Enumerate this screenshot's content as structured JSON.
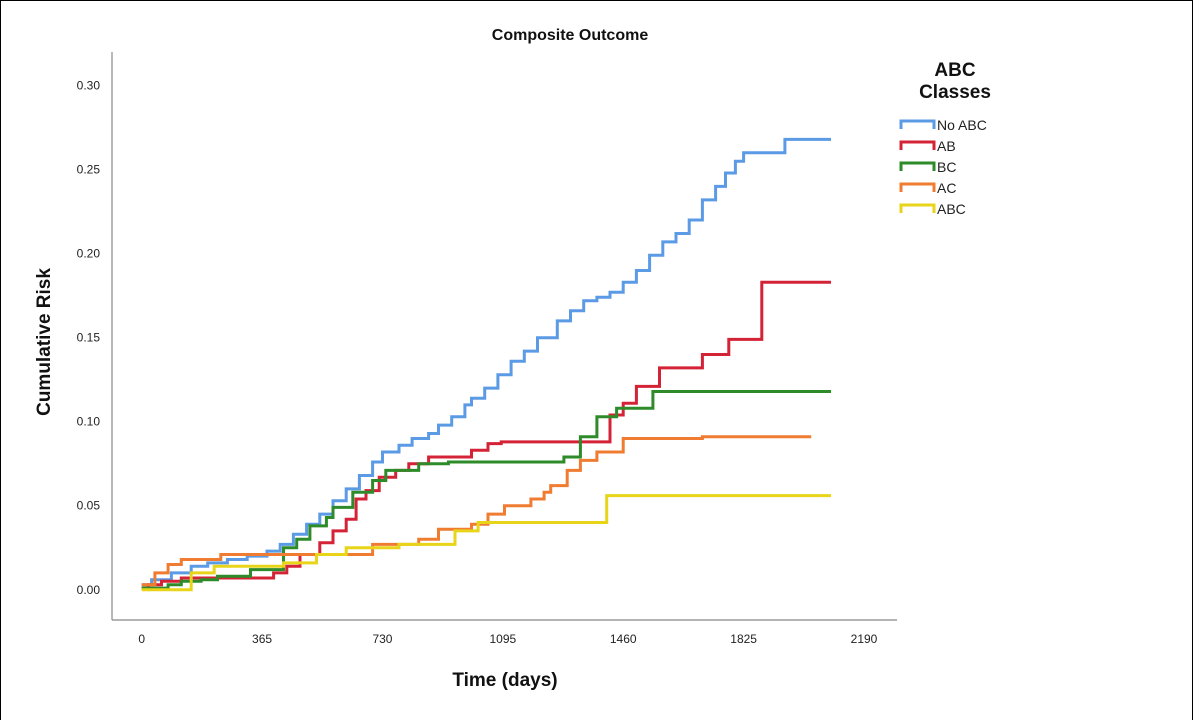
{
  "chart_data": {
    "type": "line",
    "title": "Composite Outcome",
    "xlabel": "Time (days)",
    "ylabel": "Cumulative Risk",
    "xlim": [
      -90,
      2290
    ],
    "ylim": [
      -0.018,
      0.32
    ],
    "x_ticks": [
      0,
      365,
      730,
      1095,
      1460,
      1825,
      2190
    ],
    "y_ticks": [
      0.0,
      0.05,
      0.1,
      0.15,
      0.2,
      0.25,
      0.3
    ],
    "y_tick_labels": [
      "0.00",
      "0.05",
      "0.10",
      "0.15",
      "0.20",
      "0.25",
      "0.30"
    ],
    "grid": false,
    "step": true,
    "legend": {
      "title": "ABC\nClasses",
      "position": "right"
    },
    "series": [
      {
        "name": "No ABC",
        "color": "#5b9ae5",
        "x": [
          0,
          30,
          90,
          150,
          200,
          260,
          320,
          380,
          420,
          460,
          500,
          540,
          580,
          620,
          660,
          700,
          730,
          780,
          820,
          870,
          900,
          940,
          980,
          1000,
          1040,
          1080,
          1120,
          1160,
          1200,
          1260,
          1300,
          1340,
          1380,
          1420,
          1460,
          1500,
          1540,
          1580,
          1620,
          1660,
          1700,
          1740,
          1770,
          1800,
          1825,
          1850,
          1900,
          1950,
          2090
        ],
        "y": [
          0.003,
          0.006,
          0.01,
          0.014,
          0.016,
          0.018,
          0.02,
          0.023,
          0.027,
          0.033,
          0.039,
          0.045,
          0.053,
          0.06,
          0.068,
          0.076,
          0.082,
          0.086,
          0.09,
          0.093,
          0.098,
          0.103,
          0.11,
          0.114,
          0.12,
          0.128,
          0.136,
          0.142,
          0.15,
          0.16,
          0.166,
          0.172,
          0.174,
          0.177,
          0.183,
          0.19,
          0.199,
          0.207,
          0.212,
          0.22,
          0.232,
          0.24,
          0.248,
          0.255,
          0.26,
          0.26,
          0.26,
          0.268,
          0.268
        ]
      },
      {
        "name": "AB",
        "color": "#d42336",
        "x": [
          0,
          20,
          60,
          120,
          200,
          350,
          400,
          440,
          480,
          540,
          580,
          620,
          650,
          680,
          720,
          770,
          810,
          870,
          1000,
          1050,
          1090,
          1150,
          1300,
          1420,
          1460,
          1500,
          1570,
          1640,
          1700,
          1780,
          1800,
          1880,
          2090
        ],
        "y": [
          0.001,
          0.003,
          0.005,
          0.007,
          0.007,
          0.007,
          0.01,
          0.014,
          0.021,
          0.028,
          0.035,
          0.042,
          0.054,
          0.059,
          0.067,
          0.071,
          0.075,
          0.079,
          0.083,
          0.087,
          0.088,
          0.088,
          0.088,
          0.104,
          0.111,
          0.121,
          0.132,
          0.132,
          0.14,
          0.149,
          0.149,
          0.183,
          0.183
        ]
      },
      {
        "name": "BC",
        "color": "#2e8b2a",
        "x": [
          0,
          80,
          120,
          180,
          230,
          330,
          430,
          470,
          510,
          560,
          580,
          640,
          700,
          740,
          840,
          930,
          1000,
          1180,
          1280,
          1330,
          1380,
          1440,
          1550,
          1650,
          2090
        ],
        "y": [
          0.001,
          0.003,
          0.005,
          0.006,
          0.008,
          0.012,
          0.025,
          0.03,
          0.038,
          0.043,
          0.049,
          0.058,
          0.065,
          0.071,
          0.075,
          0.076,
          0.076,
          0.076,
          0.079,
          0.091,
          0.103,
          0.108,
          0.118,
          0.118,
          0.118
        ]
      },
      {
        "name": "AC",
        "color": "#f07c32",
        "x": [
          0,
          40,
          80,
          120,
          240,
          470,
          700,
          840,
          900,
          1000,
          1050,
          1100,
          1180,
          1220,
          1240,
          1290,
          1330,
          1380,
          1460,
          1560,
          1610,
          1650,
          1700,
          2030
        ],
        "y": [
          0.003,
          0.01,
          0.015,
          0.018,
          0.021,
          0.021,
          0.027,
          0.03,
          0.036,
          0.039,
          0.045,
          0.05,
          0.054,
          0.058,
          0.062,
          0.071,
          0.077,
          0.082,
          0.09,
          0.09,
          0.09,
          0.09,
          0.091,
          0.091
        ]
      },
      {
        "name": "ABC",
        "color": "#e8d51a",
        "x": [
          0,
          150,
          220,
          380,
          430,
          530,
          620,
          780,
          950,
          1020,
          1130,
          1410,
          1450,
          2090
        ],
        "y": [
          0.0,
          0.01,
          0.014,
          0.014,
          0.016,
          0.021,
          0.025,
          0.027,
          0.035,
          0.04,
          0.04,
          0.056,
          0.056,
          0.056
        ]
      }
    ]
  }
}
